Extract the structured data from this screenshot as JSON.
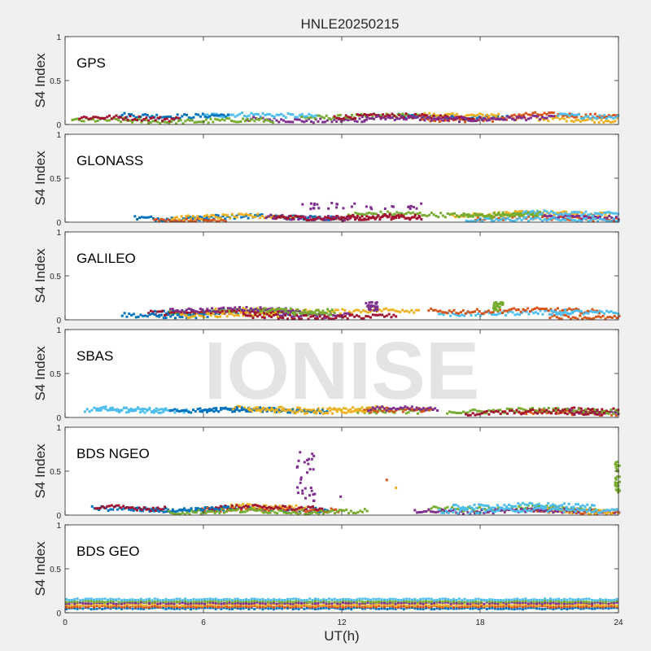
{
  "figure": {
    "title": "HNLE20250215",
    "xlabel": "UT(h)",
    "watermark": "IONISE"
  },
  "chart_data": [
    {
      "type": "scatter",
      "panel_label": "GPS",
      "ylabel": "S4 Index",
      "xlim": [
        0,
        24
      ],
      "ylim": [
        0,
        1
      ],
      "xticks": [
        0,
        6,
        12,
        18,
        24
      ],
      "yticks": [
        0,
        0.5,
        1
      ],
      "series_note": "many satellite tracks, values mostly 0.03-0.2",
      "typical_range": [
        0.03,
        0.2
      ],
      "bursts": []
    },
    {
      "type": "scatter",
      "panel_label": "GLONASS",
      "ylabel": "S4 Index",
      "xlim": [
        0,
        24
      ],
      "ylim": [
        0,
        1
      ],
      "xticks": [
        0,
        6,
        12,
        18,
        24
      ],
      "yticks": [
        0,
        0.5,
        1
      ],
      "typical_range": [
        0.02,
        0.18
      ],
      "bursts": [
        {
          "x": [
            10.0,
            15.5
          ],
          "y": [
            0.15,
            0.22
          ]
        }
      ]
    },
    {
      "type": "scatter",
      "panel_label": "GALILEO",
      "ylabel": "S4 Index",
      "xlim": [
        0,
        24
      ],
      "ylim": [
        0,
        1
      ],
      "xticks": [
        0,
        6,
        12,
        18,
        24
      ],
      "yticks": [
        0,
        0.5,
        1
      ],
      "typical_range": [
        0.03,
        0.2
      ],
      "bursts": [
        {
          "x": [
            13.0,
            13.5
          ],
          "y": [
            0.1,
            0.2
          ]
        },
        {
          "x": [
            18.5,
            19.0
          ],
          "y": [
            0.1,
            0.2
          ]
        }
      ]
    },
    {
      "type": "scatter",
      "panel_label": "SBAS",
      "ylabel": "S4 Index",
      "xlim": [
        0,
        24
      ],
      "ylim": [
        0,
        1
      ],
      "xticks": [
        0,
        6,
        12,
        18,
        24
      ],
      "yticks": [
        0,
        0.5,
        1
      ],
      "typical_range": [
        0.05,
        0.15
      ],
      "bursts": []
    },
    {
      "type": "scatter",
      "panel_label": "BDS NGEO",
      "ylabel": "S4 Index",
      "xlim": [
        0,
        24
      ],
      "ylim": [
        0,
        1
      ],
      "xticks": [
        0,
        6,
        12,
        18,
        24
      ],
      "yticks": [
        0,
        0.5,
        1
      ],
      "typical_range": [
        0.03,
        0.18
      ],
      "bursts": [
        {
          "x": [
            10.0,
            10.8
          ],
          "y": [
            0.15,
            0.72
          ]
        },
        {
          "x": [
            23.8,
            24.0
          ],
          "y": [
            0.25,
            0.62
          ]
        }
      ],
      "isolated_points": [
        {
          "x": 13.9,
          "y": 0.4
        },
        {
          "x": 14.3,
          "y": 0.31
        },
        {
          "x": 11.9,
          "y": 0.21
        }
      ]
    },
    {
      "type": "scatter",
      "panel_label": "BDS GEO",
      "ylabel": "S4 Index",
      "xlim": [
        0,
        24
      ],
      "ylim": [
        0,
        1
      ],
      "xticks": [
        0,
        6,
        12,
        18,
        24
      ],
      "yticks": [
        0,
        0.5,
        1
      ],
      "typical_range": [
        0.04,
        0.15
      ],
      "flat_levels": [
        0.05,
        0.07,
        0.09,
        0.11,
        0.13,
        0.15
      ]
    }
  ],
  "colors": {
    "series": [
      "#0072BD",
      "#D95319",
      "#EDB120",
      "#7E2F8E",
      "#77AC30",
      "#4DBEEE",
      "#A2142F"
    ],
    "axes_bg": "#ffffff",
    "figure_bg": "#f0f0f0",
    "watermark": "#e0e0e0"
  }
}
